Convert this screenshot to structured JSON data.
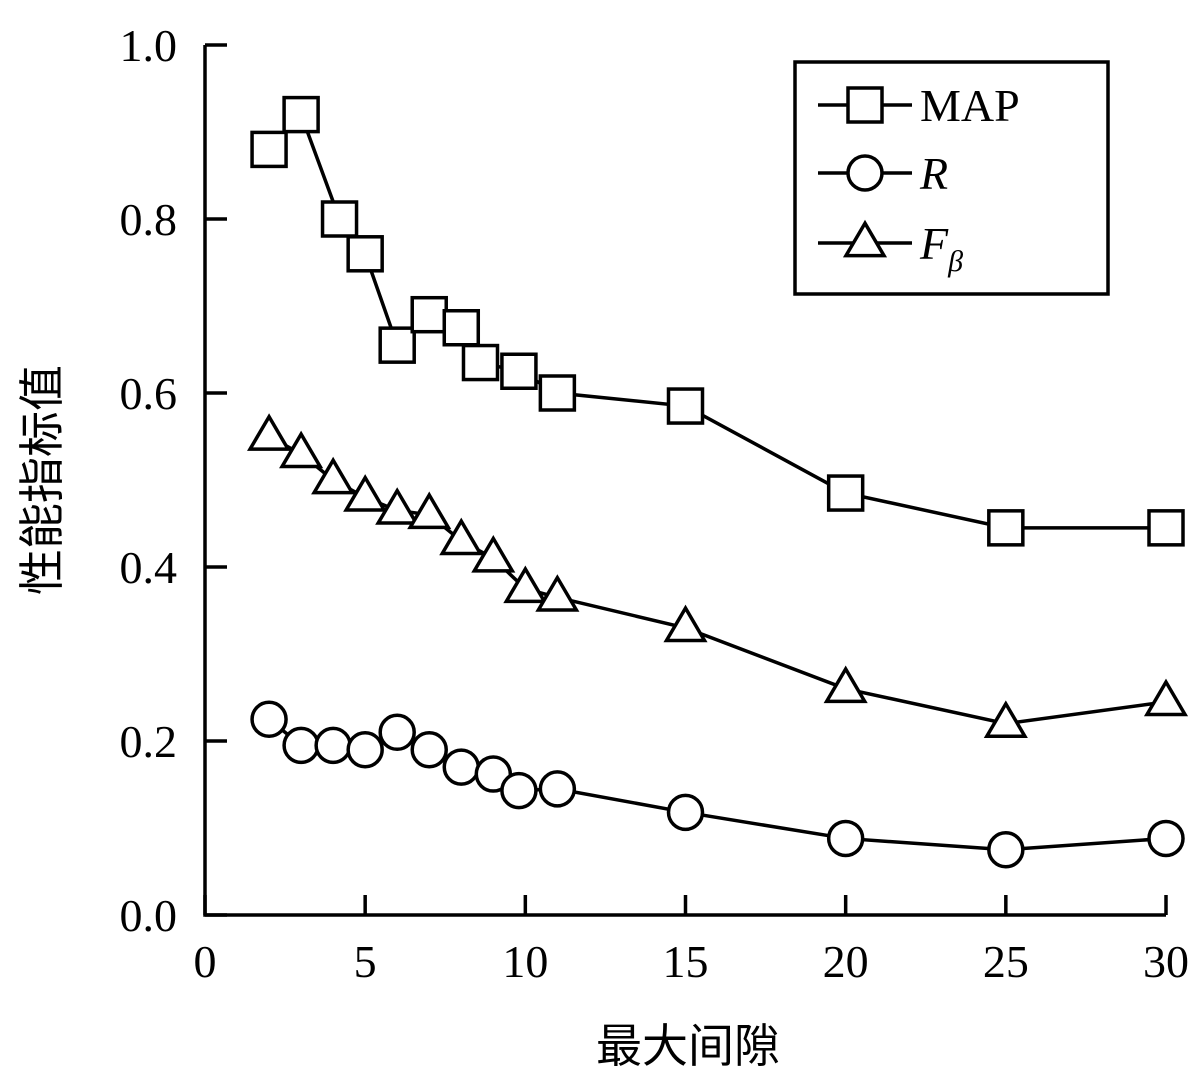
{
  "chart_data": {
    "type": "line",
    "xlabel": "最大间隙",
    "ylabel": "性能指标值",
    "xlim": [
      0,
      30
    ],
    "ylim": [
      0.0,
      1.0
    ],
    "xticks": [
      0,
      5,
      10,
      15,
      20,
      25,
      30
    ],
    "yticks": [
      0.0,
      0.2,
      0.4,
      0.6,
      0.8,
      1.0
    ],
    "ytick_labels": [
      "0.0",
      "0.2",
      "0.4",
      "0.6",
      "0.8",
      "1.0"
    ],
    "legend_position": "top-right",
    "series": [
      {
        "name": "MAP",
        "marker": "square",
        "x": [
          2,
          3,
          4.2,
          5,
          6,
          7,
          8,
          8.6,
          9.8,
          11,
          15,
          20,
          25,
          30
        ],
        "y": [
          0.88,
          0.92,
          0.8,
          0.76,
          0.655,
          0.69,
          0.675,
          0.635,
          0.625,
          0.6,
          0.585,
          0.485,
          0.445,
          0.445
        ]
      },
      {
        "name": "R",
        "marker": "circle",
        "x": [
          2,
          3,
          4,
          5,
          6,
          7,
          8,
          9,
          9.8,
          11,
          15,
          20,
          25,
          30
        ],
        "y": [
          0.225,
          0.195,
          0.195,
          0.19,
          0.21,
          0.19,
          0.17,
          0.162,
          0.143,
          0.145,
          0.118,
          0.088,
          0.075,
          0.088
        ]
      },
      {
        "name": "Fβ",
        "marker": "triangle",
        "x": [
          2,
          3,
          4,
          5,
          6,
          7,
          8,
          9,
          10,
          11,
          15,
          20,
          25,
          30
        ],
        "y": [
          0.55,
          0.53,
          0.5,
          0.48,
          0.465,
          0.46,
          0.43,
          0.41,
          0.375,
          0.365,
          0.33,
          0.26,
          0.22,
          0.245
        ]
      }
    ]
  }
}
